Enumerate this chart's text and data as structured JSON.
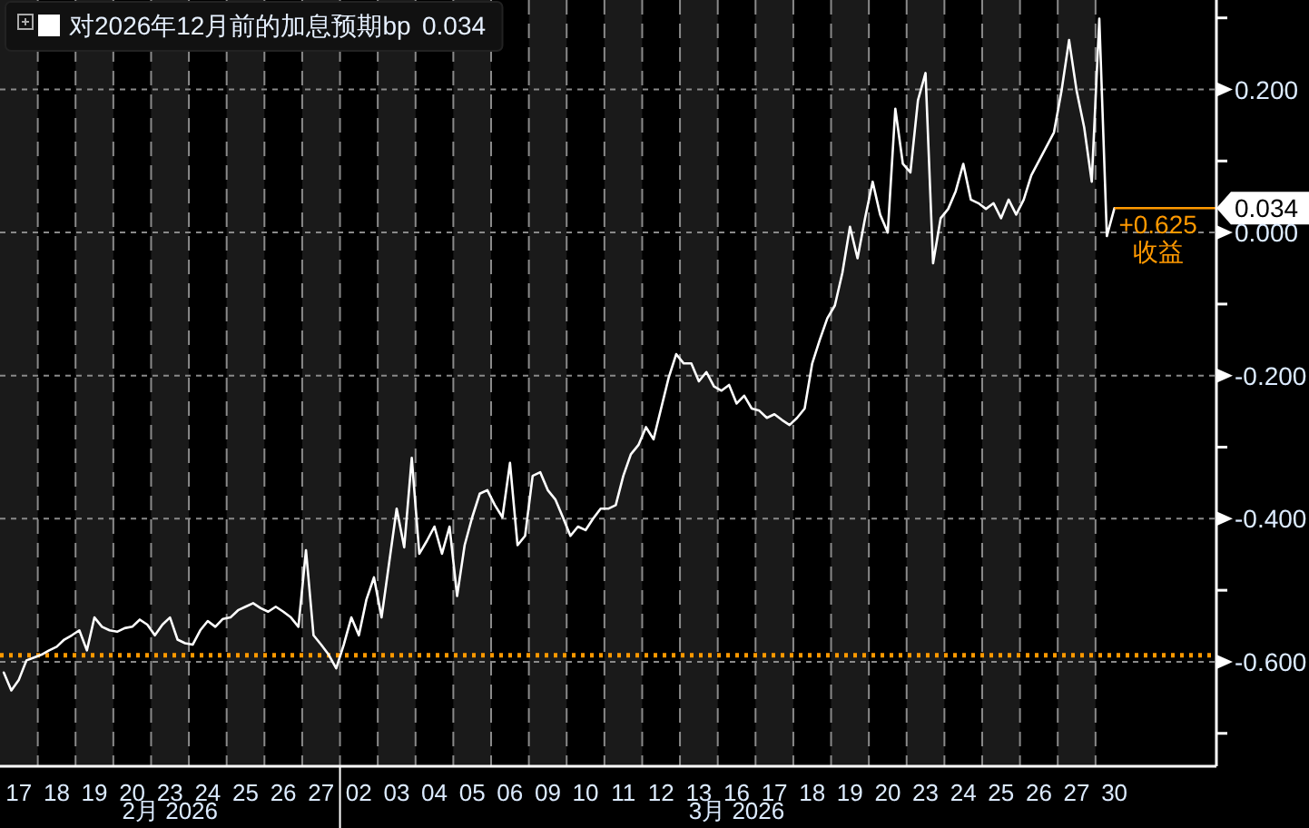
{
  "chart_data": {
    "type": "line",
    "categories": [
      null,
      null,
      "17",
      null,
      null,
      null,
      null,
      "18",
      null,
      null,
      null,
      null,
      "19",
      null,
      null,
      null,
      null,
      "20",
      null,
      null,
      null,
      null,
      "23",
      null,
      null,
      null,
      null,
      "24",
      null,
      null,
      null,
      null,
      "25",
      null,
      null,
      null,
      null,
      "26",
      null,
      null,
      null,
      null,
      "27",
      null,
      null,
      null,
      null,
      "02",
      null,
      null,
      null,
      null,
      "03",
      null,
      null,
      null,
      null,
      "04",
      null,
      null,
      null,
      null,
      "05",
      null,
      null,
      null,
      null,
      "06",
      null,
      null,
      null,
      null,
      "09",
      null,
      null,
      null,
      null,
      "10",
      null,
      null,
      null,
      null,
      "11",
      null,
      null,
      null,
      null,
      "12",
      null,
      null,
      null,
      null,
      "13",
      null,
      null,
      null,
      null,
      "16",
      null,
      null,
      null,
      null,
      "17",
      null,
      null,
      null,
      null,
      "18",
      null,
      null,
      null,
      null,
      "19",
      null,
      null,
      null,
      null,
      "20",
      null,
      null,
      null,
      null,
      "23",
      null,
      null,
      null,
      null,
      "24",
      null,
      null,
      null,
      null,
      "25",
      null,
      null,
      null,
      null,
      "26",
      null,
      null,
      null,
      null,
      "27",
      null,
      null,
      null,
      null,
      "30",
      null,
      null,
      null,
      null,
      null,
      null,
      null,
      null,
      null,
      null,
      null,
      null,
      null
    ],
    "series": [
      {
        "name": "对2026年12月前的加息预期bp",
        "color": "#ffffff",
        "values": [
          -0.615,
          -0.64,
          -0.625,
          -0.598,
          -0.594,
          -0.59,
          -0.584,
          -0.579,
          -0.569,
          -0.563,
          -0.556,
          -0.584,
          -0.538,
          -0.551,
          -0.556,
          -0.558,
          -0.553,
          -0.551,
          -0.541,
          -0.548,
          -0.563,
          -0.548,
          -0.538,
          -0.569,
          -0.574,
          -0.576,
          -0.556,
          -0.543,
          -0.551,
          -0.54,
          -0.538,
          -0.528,
          -0.523,
          -0.518,
          -0.525,
          -0.53,
          -0.523,
          -0.53,
          -0.538,
          -0.551,
          -0.444,
          -0.563,
          -0.576,
          -0.59,
          -0.609,
          -0.576,
          -0.538,
          -0.563,
          -0.513,
          -0.482,
          -0.538,
          -0.462,
          -0.386,
          -0.44,
          -0.315,
          -0.449,
          -0.431,
          -0.411,
          -0.449,
          -0.411,
          -0.508,
          -0.437,
          -0.398,
          -0.365,
          -0.36,
          -0.381,
          -0.398,
          -0.322,
          -0.437,
          -0.424,
          -0.34,
          -0.335,
          -0.36,
          -0.373,
          -0.398,
          -0.424,
          -0.411,
          -0.416,
          -0.4,
          -0.386,
          -0.386,
          -0.381,
          -0.34,
          -0.31,
          -0.297,
          -0.272,
          -0.289,
          -0.246,
          -0.203,
          -0.17,
          -0.183,
          -0.183,
          -0.208,
          -0.195,
          -0.215,
          -0.221,
          -0.213,
          -0.239,
          -0.228,
          -0.246,
          -0.249,
          -0.259,
          -0.254,
          -0.262,
          -0.269,
          -0.259,
          -0.246,
          -0.183,
          -0.15,
          -0.12,
          -0.102,
          -0.056,
          0.008,
          -0.036,
          0.02,
          0.071,
          0.025,
          0.0,
          0.173,
          0.096,
          0.084,
          0.185,
          0.223,
          -0.043,
          0.02,
          0.033,
          0.058,
          0.096,
          0.046,
          0.041,
          0.033,
          0.041,
          0.02,
          0.046,
          0.025,
          0.046,
          0.08,
          0.1,
          0.12,
          0.14,
          0.198,
          0.269,
          0.198,
          0.147,
          0.071,
          0.299,
          -0.005,
          0.034,
          null,
          null,
          null,
          null,
          null,
          null,
          null,
          null,
          null,
          null,
          null,
          null,
          null
        ],
        "value_labels": [
          null,
          null,
          null,
          null,
          null,
          null,
          null,
          null,
          null,
          null,
          null,
          null,
          null,
          null,
          null,
          null,
          null,
          null,
          null,
          null,
          null,
          null,
          null,
          null,
          null,
          null,
          null,
          null,
          null,
          null,
          null,
          null,
          null,
          null,
          null,
          null,
          null,
          null,
          null,
          null,
          null,
          null,
          null,
          null,
          null,
          null,
          null,
          null,
          null,
          null,
          null,
          null,
          null,
          null,
          null,
          null,
          null,
          null,
          null,
          null,
          null,
          null,
          null,
          null,
          null,
          null,
          null,
          null,
          null,
          null,
          null,
          null,
          null,
          null,
          null,
          null,
          null,
          null,
          null,
          null,
          null,
          null,
          null,
          null,
          null,
          null,
          null,
          null,
          null,
          null,
          null,
          null,
          null,
          null,
          null,
          null,
          null,
          null,
          null,
          null,
          null,
          null,
          null,
          null,
          null,
          null,
          null,
          null,
          null,
          null,
          null,
          null,
          null,
          null,
          null,
          null,
          null,
          null,
          null,
          null,
          null,
          null,
          null,
          null,
          null,
          null,
          null,
          null,
          null,
          null,
          null,
          null,
          null,
          null,
          null,
          null,
          null,
          null,
          null,
          null,
          null,
          null,
          null,
          null,
          null,
          null,
          null,
          "0.034",
          null,
          null,
          null,
          null,
          null,
          null,
          null,
          null,
          null,
          null,
          null,
          null,
          null
        ]
      }
    ],
    "ylim": [
      -0.746,
      0.325
    ],
    "yticks": [
      {
        "value": 0.3,
        "label": null
      },
      {
        "value": 0.2,
        "label": "0.200"
      },
      {
        "value": 0.1,
        "label": null
      },
      {
        "value": 0,
        "label": "0.000"
      },
      {
        "value": -0.1,
        "label": null
      },
      {
        "value": -0.2,
        "label": "-0.200"
      },
      {
        "value": -0.3,
        "label": null
      },
      {
        "value": -0.4,
        "label": "-0.400"
      },
      {
        "value": -0.5,
        "label": null
      },
      {
        "value": -0.6,
        "label": "-0.600"
      },
      {
        "value": -0.7,
        "label": null
      }
    ],
    "grid": true,
    "legend": "top left",
    "line_style": "solid",
    "ref_lines": [
      {
        "axis": "y",
        "value": -0.591,
        "color": "#ff9900",
        "line_style": "dotted"
      }
    ],
    "annotations": [
      "+0.625",
      "收益",
      "2月 2026",
      "3月 2026"
    ]
  }
}
